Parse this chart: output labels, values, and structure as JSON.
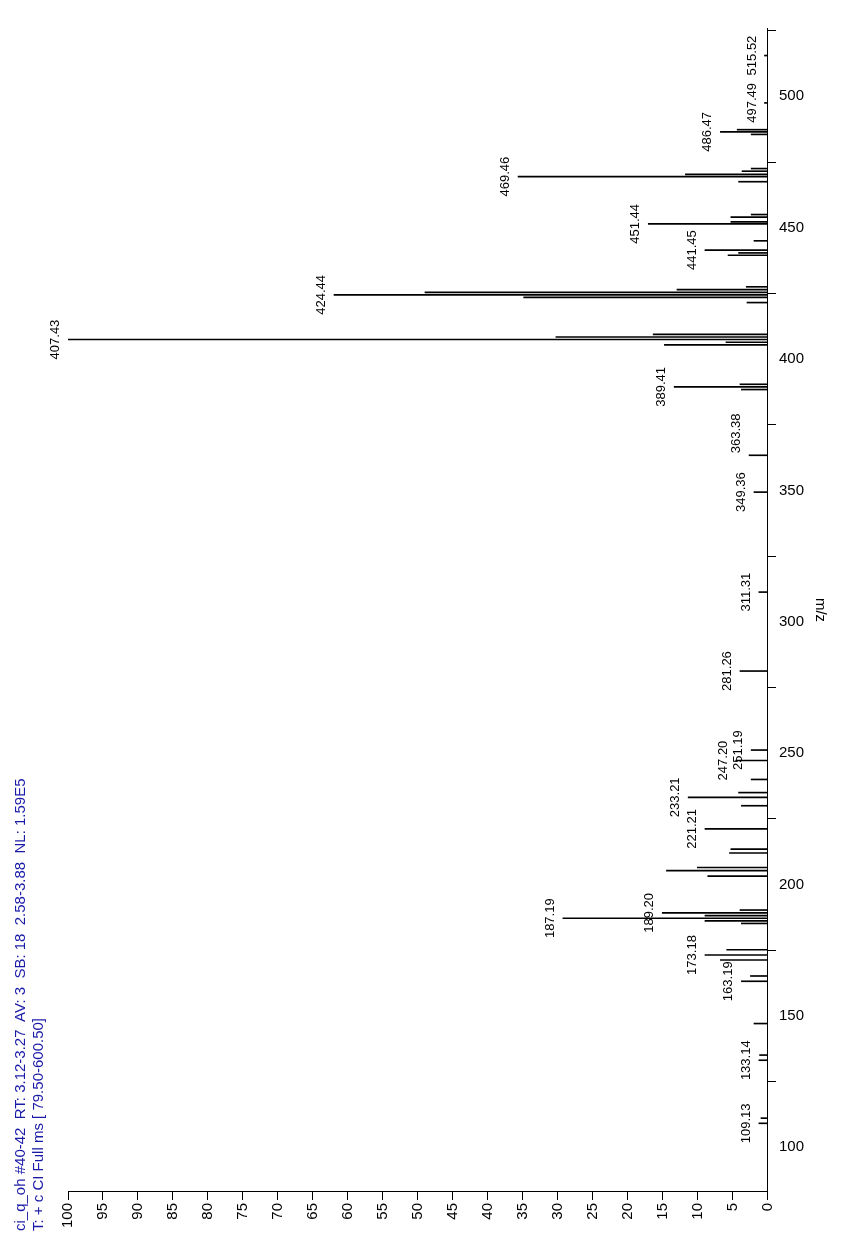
{
  "chart_data": {
    "type": "bar",
    "title": "ci_q_oh #40-42  RT: 3.12-3.27  AV: 3  SB: 18  2.58-3.88  NL: 1.59E5",
    "subtitle": "T: + c CI Full ms [ 79.50-600.50]",
    "ylabel": "m/z",
    "x": [
      109.13,
      111.1,
      133.14,
      135.1,
      147.1,
      163.19,
      165.2,
      171.3,
      173.18,
      175.2,
      185.2,
      186.2,
      187.19,
      188.2,
      189.2,
      190.3,
      203.2,
      205.3,
      206.5,
      212.0,
      213.5,
      221.21,
      230.0,
      233.21,
      235.0,
      240.0,
      247.2,
      251.19,
      281.26,
      311.31,
      349.36,
      363.38,
      388.4,
      389.41,
      390.4,
      405.4,
      406.4,
      407.43,
      408.4,
      409.4,
      421.5,
      423.5,
      424.44,
      425.4,
      426.4,
      427.5,
      439.5,
      440.4,
      441.45,
      445.0,
      451.44,
      452.2,
      454.0,
      455.0,
      467.5,
      469.46,
      470.3,
      471.5,
      472.5,
      485.5,
      486.47,
      487.3,
      497.49,
      515.52
    ],
    "values": [
      1.3,
      1.0,
      1.3,
      1.2,
      2.0,
      3.8,
      2.5,
      6.8,
      9.0,
      5.9,
      3.8,
      9.0,
      29.3,
      9.0,
      15.1,
      4.0,
      8.6,
      14.5,
      10.1,
      5.5,
      5.3,
      9.0,
      3.8,
      11.4,
      4.2,
      2.4,
      4.6,
      2.4,
      4.0,
      1.3,
      2.0,
      2.7,
      3.8,
      13.4,
      4.0,
      14.8,
      6.0,
      100,
      30.3,
      16.4,
      3.0,
      34.9,
      62.0,
      49.0,
      13.0,
      3.1,
      5.7,
      4.2,
      9.0,
      2.0,
      17.1,
      5.3,
      5.3,
      2.4,
      4.2,
      35.7,
      11.8,
      3.7,
      2.4,
      2.4,
      6.8,
      4.4,
      0.5,
      0.5
    ],
    "color": "#000000",
    "orientation": "horizontal",
    "ylim": [
      83,
      526
    ],
    "yticks": [
      100,
      150,
      200,
      250,
      300,
      350,
      400,
      450,
      500
    ],
    "xlim": [
      100,
      0
    ],
    "xticks": [
      100,
      95,
      90,
      85,
      80,
      75,
      70,
      65,
      60,
      55,
      50,
      45,
      40,
      35,
      30,
      25,
      20,
      15,
      10,
      5,
      0
    ],
    "grid": false,
    "legend": false,
    "annotations": [
      {
        "text": "109.13",
        "y": 109.13,
        "x": 1.3
      },
      {
        "text": "133.14",
        "y": 133.14,
        "x": 1.3
      },
      {
        "text": "163.19",
        "y": 163.19,
        "x": 3.8
      },
      {
        "text": "173.18",
        "y": 173.18,
        "x": 9.0
      },
      {
        "text": "187.19",
        "y": 187.19,
        "x": 29.3
      },
      {
        "text": "189.20",
        "y": 189.2,
        "x": 15.1
      },
      {
        "text": "221.21",
        "y": 221.21,
        "x": 9.0
      },
      {
        "text": "233.21",
        "y": 233.21,
        "x": 11.4
      },
      {
        "text": "247.20",
        "y": 247.2,
        "x": 4.6
      },
      {
        "text": "251.19",
        "y": 251.19,
        "x": 2.4
      },
      {
        "text": "281.26",
        "y": 281.26,
        "x": 4.0
      },
      {
        "text": "311.31",
        "y": 311.31,
        "x": 1.3
      },
      {
        "text": "349.36",
        "y": 349.36,
        "x": 2.0
      },
      {
        "text": "363.38",
        "y": 363.38,
        "x": 2.7
      },
      {
        "text": "389.41",
        "y": 389.41,
        "x": 13.4
      },
      {
        "text": "407.43",
        "y": 407.43,
        "x": 100
      },
      {
        "text": "424.44",
        "y": 424.44,
        "x": 62.0
      },
      {
        "text": "441.45",
        "y": 441.45,
        "x": 9.0
      },
      {
        "text": "451.44",
        "y": 451.44,
        "x": 17.1
      },
      {
        "text": "469.46",
        "y": 469.46,
        "x": 35.7
      },
      {
        "text": "486.47",
        "y": 486.47,
        "x": 6.8
      },
      {
        "text": "497.49",
        "y": 497.49,
        "x": 0.5
      },
      {
        "text": "515.52",
        "y": 515.52,
        "x": 0.5
      }
    ]
  }
}
